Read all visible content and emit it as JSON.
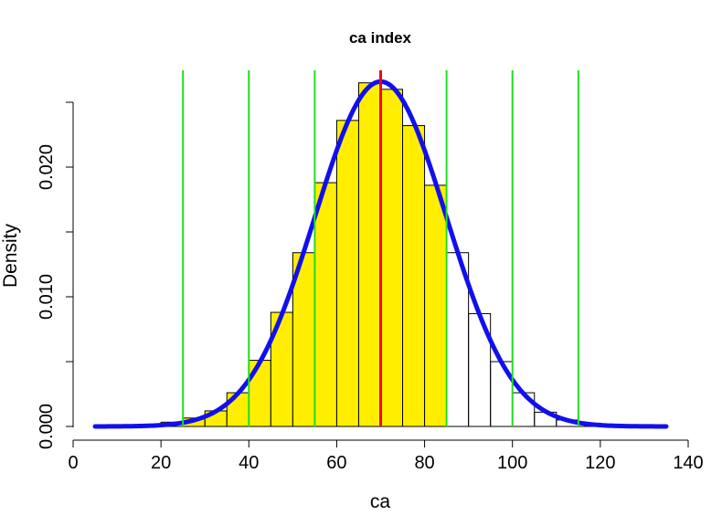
{
  "chart_data": {
    "type": "histogram",
    "title": "ca index",
    "xlabel": "ca",
    "ylabel": "Density",
    "xlim": [
      0,
      140
    ],
    "ylim": [
      0,
      0.025
    ],
    "x_ticks": [
      "0",
      "20",
      "40",
      "60",
      "80",
      "100",
      "120",
      "140"
    ],
    "y_ticks": [
      "0.000",
      "0.010",
      "0.020"
    ],
    "bins": {
      "edges": [
        5,
        10,
        15,
        20,
        25,
        30,
        35,
        40,
        45,
        50,
        55,
        60,
        65,
        70,
        75,
        80,
        85,
        90,
        95,
        100,
        105,
        110,
        115,
        120,
        125,
        130,
        135
      ],
      "densities": [
        2e-05,
        5e-05,
        0.00013,
        0.00033,
        0.00065,
        0.0012,
        0.0026,
        0.0051,
        0.0088,
        0.0134,
        0.0188,
        0.0236,
        0.0265,
        0.026,
        0.0232,
        0.0186,
        0.0134,
        0.0087,
        0.005,
        0.0026,
        0.0011,
        0.0005,
        0.00025,
        0.0001,
        4e-05,
        1e-05
      ],
      "highlight_range": [
        40,
        85
      ],
      "highlight_color": "#FFEE00",
      "base_fill_range": [
        25,
        85
      ]
    },
    "density_curve": {
      "mean": 70,
      "sd": 15,
      "color": "#1010EE",
      "x_range": [
        5,
        135
      ]
    },
    "vertical_lines": [
      {
        "x": 25,
        "color": "#22DD22"
      },
      {
        "x": 40,
        "color": "#22DD22"
      },
      {
        "x": 55,
        "color": "#22DD22"
      },
      {
        "x": 85,
        "color": "#22DD22"
      },
      {
        "x": 100,
        "color": "#22DD22"
      },
      {
        "x": 115,
        "color": "#22DD22"
      },
      {
        "x": 70,
        "color": "#FF0000"
      }
    ]
  }
}
